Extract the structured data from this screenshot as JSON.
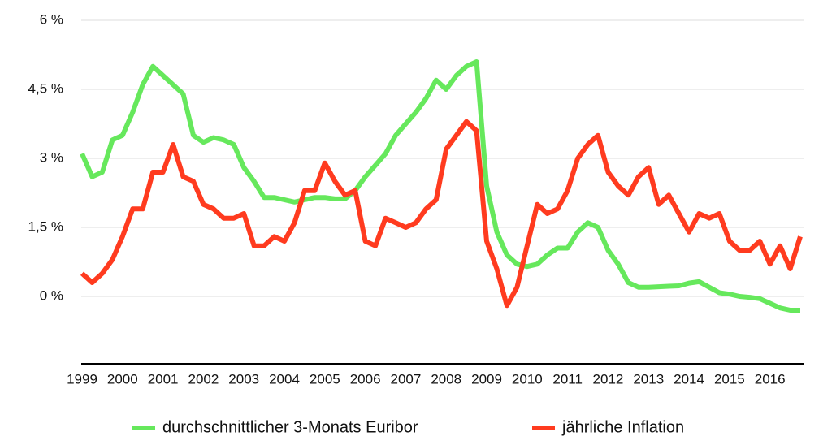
{
  "chart_data": {
    "type": "line",
    "x": [
      1999,
      1999.25,
      1999.5,
      1999.75,
      2000,
      2000.25,
      2000.5,
      2000.75,
      2001,
      2001.25,
      2001.5,
      2001.75,
      2002,
      2002.25,
      2002.5,
      2002.75,
      2003,
      2003.25,
      2003.5,
      2003.75,
      2004,
      2004.25,
      2004.5,
      2004.75,
      2005,
      2005.25,
      2005.5,
      2005.75,
      2006,
      2006.25,
      2006.5,
      2006.75,
      2007,
      2007.25,
      2007.5,
      2007.75,
      2008,
      2008.25,
      2008.5,
      2008.75,
      2009,
      2009.25,
      2009.5,
      2009.75,
      2010,
      2010.25,
      2010.5,
      2010.75,
      2011,
      2011.25,
      2011.5,
      2011.75,
      2012,
      2012.25,
      2012.5,
      2012.75,
      2013,
      2013.25,
      2013.5,
      2013.75,
      2014,
      2014.25,
      2014.5,
      2014.75,
      2015,
      2015.25,
      2015.5,
      2015.75,
      2016,
      2016.25,
      2016.5,
      2016.75
    ],
    "series": [
      {
        "name": "durchschnittlicher 3-Monats Euribor",
        "color": "#66e85c",
        "values": [
          3.1,
          2.6,
          2.7,
          3.4,
          3.5,
          4.0,
          4.6,
          5.0,
          4.8,
          4.6,
          4.4,
          3.5,
          3.35,
          3.45,
          3.4,
          3.3,
          2.8,
          2.5,
          2.15,
          2.15,
          2.1,
          2.05,
          2.1,
          2.15,
          2.15,
          2.12,
          2.12,
          2.3,
          2.6,
          2.85,
          3.1,
          3.5,
          3.75,
          4.0,
          4.3,
          4.7,
          4.5,
          4.8,
          5.0,
          5.1,
          2.4,
          1.4,
          0.9,
          0.7,
          0.65,
          0.7,
          0.9,
          1.05,
          1.05,
          1.4,
          1.6,
          1.5,
          1.0,
          0.7,
          0.3,
          0.2,
          0.2,
          0.21,
          0.22,
          0.23,
          0.29,
          0.32,
          0.2,
          0.08,
          0.05,
          0.0,
          -0.02,
          -0.05,
          -0.15,
          -0.25,
          -0.3,
          -0.3
        ]
      },
      {
        "name": "jährliche Inflation",
        "color": "#ff3b1f",
        "values": [
          0.5,
          0.3,
          0.5,
          0.8,
          1.3,
          1.9,
          1.9,
          2.7,
          2.7,
          3.3,
          2.6,
          2.5,
          2.0,
          1.9,
          1.7,
          1.7,
          1.8,
          1.1,
          1.1,
          1.3,
          1.2,
          1.6,
          2.3,
          2.3,
          2.9,
          2.5,
          2.2,
          2.3,
          1.2,
          1.1,
          1.7,
          1.6,
          1.5,
          1.6,
          1.9,
          2.1,
          3.2,
          3.5,
          3.8,
          3.6,
          1.2,
          0.6,
          -0.2,
          0.2,
          1.1,
          2.0,
          1.8,
          1.9,
          2.3,
          3.0,
          3.3,
          3.5,
          2.7,
          2.4,
          2.2,
          2.6,
          2.8,
          2.0,
          2.2,
          1.8,
          1.4,
          1.8,
          1.7,
          1.8,
          1.2,
          1.0,
          1.0,
          1.2,
          0.7,
          1.1,
          0.6,
          1.3
        ]
      }
    ],
    "xlim": [
      1999,
      2016.85
    ],
    "xticks": [
      1999,
      2000,
      2001,
      2002,
      2003,
      2004,
      2005,
      2006,
      2007,
      2008,
      2009,
      2010,
      2011,
      2012,
      2013,
      2014,
      2015,
      2016
    ],
    "ylim": [
      -1.5,
      6
    ],
    "yticks": [
      {
        "value": 0,
        "label": "0 %"
      },
      {
        "value": 1.5,
        "label": "1,5 %"
      },
      {
        "value": 3,
        "label": "3 %"
      },
      {
        "value": 4.5,
        "label": "4,5 %"
      },
      {
        "value": 6,
        "label": "6 %"
      }
    ],
    "grid": true,
    "legend": "bottom"
  }
}
